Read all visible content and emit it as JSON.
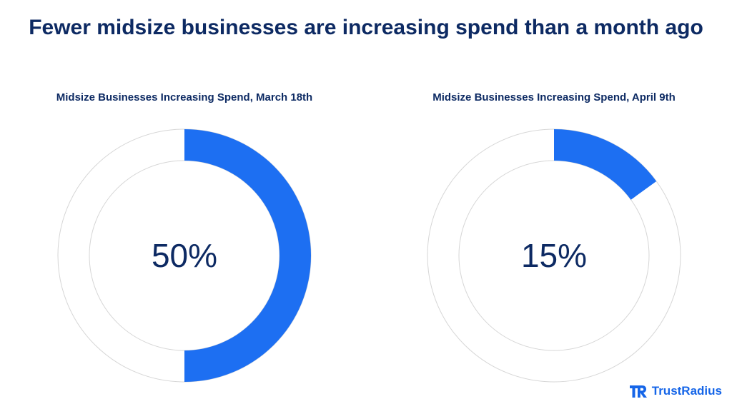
{
  "header": {
    "title": "Fewer midsize businesses are increasing spend than a month ago"
  },
  "colors": {
    "accent": "#1d6ff2",
    "track": "#ffffff",
    "ring_border": "#d6d6d6",
    "text": "#0d2a63"
  },
  "brand": {
    "name": "TrustRadius",
    "logo_icon": "trustradius-logo-icon"
  },
  "chart_data": [
    {
      "type": "pie",
      "style": "donut",
      "title": "Midsize Businesses Increasing Spend, March 18th",
      "values": [
        50,
        50
      ],
      "center_label": "50%",
      "percent": 50
    },
    {
      "type": "pie",
      "style": "donut",
      "title": "Midsize Businesses Increasing Spend, April 9th",
      "values": [
        15,
        85
      ],
      "center_label": "15%",
      "percent": 15
    }
  ]
}
